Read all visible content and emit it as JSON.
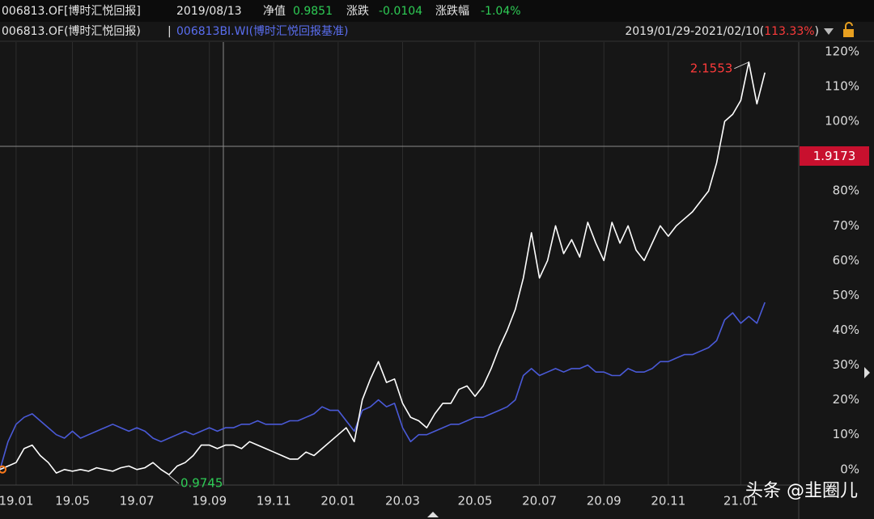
{
  "header": {
    "code": "006813.OF[博时汇悦回报]",
    "date": "2019/08/13",
    "nav_label": "净值",
    "nav": "0.9851",
    "change_label": "涨跌",
    "change": "-0.0104",
    "pct_label": "涨跌幅",
    "pct": "-1.04%"
  },
  "legend_separator": "|",
  "range": {
    "open": "",
    "dates": "2019/01/29-2021/02/10",
    "paren_open": "(",
    "ret": "113.33%",
    "paren_close": ")"
  },
  "crosshair_label": "1.9173",
  "watermark": "头条 @韭圈儿",
  "chart_data": {
    "type": "line",
    "grid": "x",
    "annotations": [
      {
        "label": "0.9745",
        "index": 21
      },
      {
        "label": "2.1553",
        "index": 93
      }
    ],
    "categories": [
      null,
      null,
      "19.01",
      null,
      null,
      null,
      null,
      null,
      null,
      "19.05",
      null,
      null,
      null,
      null,
      null,
      null,
      null,
      "19.07",
      null,
      null,
      null,
      null,
      null,
      null,
      null,
      null,
      "19.09",
      null,
      null,
      null,
      null,
      null,
      null,
      null,
      "19.11",
      null,
      null,
      null,
      null,
      null,
      null,
      null,
      "20.01",
      null,
      null,
      null,
      null,
      null,
      null,
      null,
      "20.03",
      null,
      null,
      null,
      null,
      null,
      null,
      null,
      null,
      "20.05",
      null,
      null,
      null,
      null,
      null,
      null,
      null,
      "20.07",
      null,
      null,
      null,
      null,
      null,
      null,
      null,
      "20.09",
      null,
      null,
      null,
      null,
      null,
      null,
      null,
      "20.11",
      null,
      null,
      null,
      null,
      null,
      null,
      null,
      null,
      "21.01",
      null,
      null,
      null,
      null,
      null,
      null,
      null
    ],
    "series": [
      {
        "name": "006813.OF(博时汇悦回报)",
        "color": "#ffffff",
        "values": [
          0,
          1,
          2,
          6,
          7,
          4,
          2,
          -1,
          0,
          -0.5,
          0,
          -0.5,
          0.5,
          0,
          -0.5,
          0.5,
          1,
          0,
          0.5,
          2,
          0,
          -1.5,
          1,
          2,
          4,
          7,
          7,
          6,
          7,
          7,
          6,
          8,
          7,
          6,
          5,
          4,
          3,
          3,
          5,
          4,
          6,
          8,
          10,
          12,
          8,
          20,
          26,
          31,
          25,
          26,
          19,
          15,
          14,
          12,
          16,
          19,
          19,
          23,
          24,
          21,
          24,
          29,
          35,
          40,
          46,
          55,
          68,
          55,
          60,
          70,
          62,
          66,
          61,
          71,
          65,
          60,
          71,
          65,
          70,
          63,
          60,
          65,
          70,
          67,
          70,
          72,
          74,
          77,
          80,
          88,
          100,
          102,
          106,
          117,
          105,
          114,
          null,
          null,
          null,
          null
        ]
      },
      {
        "name": "006813BI.WI(博时汇悦回报基准)",
        "color": "#4a5ad8",
        "values": [
          0,
          8,
          13,
          15,
          16,
          14,
          12,
          10,
          9,
          11,
          9,
          10,
          11,
          12,
          13,
          12,
          11,
          12,
          11,
          9,
          8,
          9,
          10,
          11,
          10,
          11,
          12,
          11,
          12,
          12,
          13,
          13,
          14,
          13,
          13,
          13,
          14,
          14,
          15,
          16,
          18,
          17,
          17,
          14,
          11,
          17,
          18,
          20,
          18,
          19,
          12,
          8,
          10,
          10,
          11,
          12,
          13,
          13,
          14,
          15,
          15,
          16,
          17,
          18,
          20,
          27,
          29,
          27,
          28,
          29,
          28,
          29,
          29,
          30,
          28,
          28,
          27,
          27,
          29,
          28,
          28,
          29,
          31,
          31,
          32,
          33,
          33,
          34,
          35,
          37,
          43,
          45,
          42,
          44,
          42,
          48,
          null,
          null,
          null,
          null
        ]
      }
    ],
    "ylim": [
      -4,
      123
    ],
    "yticks": [
      {
        "value": 0,
        "label": "0%"
      },
      {
        "value": 10,
        "label": "10%"
      },
      {
        "value": 20,
        "label": "20%"
      },
      {
        "value": 30,
        "label": "30%"
      },
      {
        "value": 40,
        "label": "40%"
      },
      {
        "value": 50,
        "label": "50%"
      },
      {
        "value": 60,
        "label": "60%"
      },
      {
        "value": 70,
        "label": "70%"
      },
      {
        "value": 80,
        "label": "80%"
      },
      {
        "value": 100,
        "label": "100%"
      },
      {
        "value": 110,
        "label": "110%"
      },
      {
        "value": 120,
        "label": "120%"
      }
    ]
  }
}
